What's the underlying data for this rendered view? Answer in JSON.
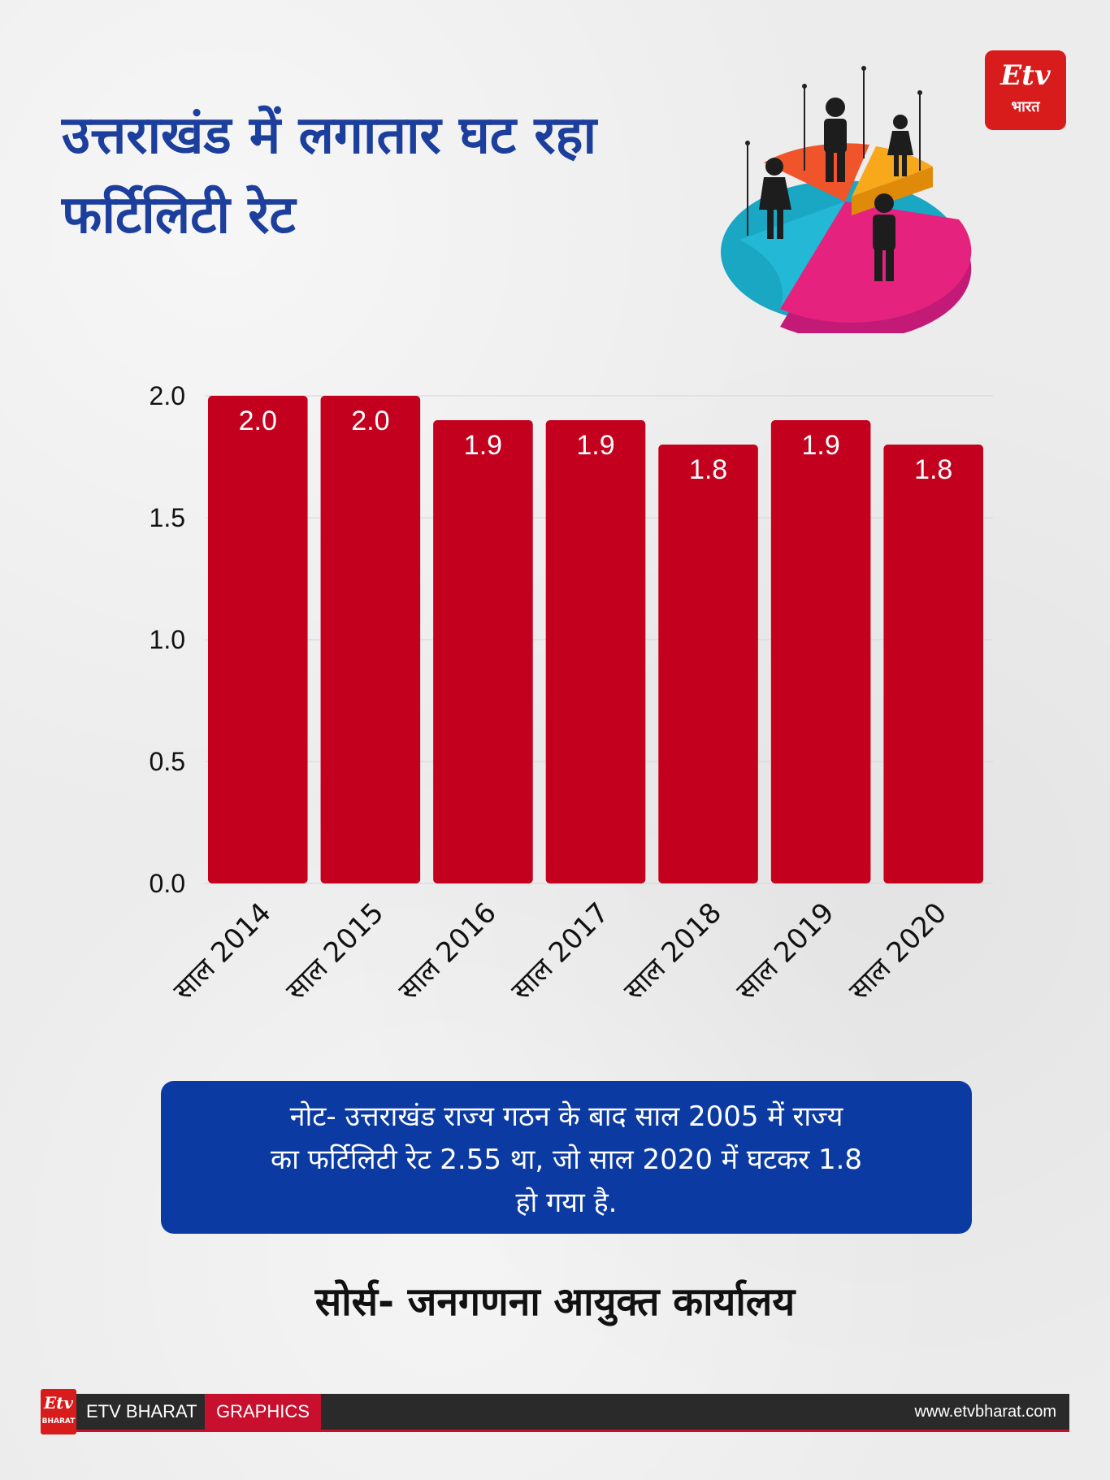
{
  "header": {
    "title_lines": [
      "उत्तराखंड में लगातार घट रहा",
      "फर्टिलिटी रेट"
    ],
    "logo_mark": "Etv",
    "logo_sub": "भारत"
  },
  "chart_data": {
    "type": "bar",
    "title": "",
    "xlabel": "",
    "ylabel": "",
    "categories": [
      "साल 2014",
      "साल 2015",
      "साल 2016",
      "साल 2017",
      "साल 2018",
      "साल 2019",
      "साल 2020"
    ],
    "values": [
      2.0,
      2.0,
      1.9,
      1.9,
      1.8,
      1.9,
      1.8
    ],
    "data_labels": [
      "2.0",
      "2.0",
      "1.9",
      "1.9",
      "1.8",
      "1.9",
      "1.8"
    ],
    "ylim": [
      0,
      2.0
    ],
    "yticks": [
      "0.0",
      "0.5",
      "1.0",
      "1.5",
      "2.0"
    ],
    "ytick_values": [
      0,
      0.5,
      1.0,
      1.5,
      2.0
    ],
    "grid": true,
    "bar_color": "#c4001f"
  },
  "note": {
    "lines": [
      "नोट- उत्तराखंड राज्य गठन के बाद साल 2005 में राज्य",
      "का फर्टिलिटी रेट 2.55 था, जो साल 2020 में घटकर 1.8",
      "हो गया है."
    ]
  },
  "source": "सोर्स- जनगणना आयुक्त कार्यालय",
  "footer": {
    "logo_mark": "Etv",
    "logo_sub": "BHARAT",
    "brand": "ETV BHARAT",
    "graphics": "GRAPHICS",
    "url": "www.etvbharat.com"
  },
  "colors": {
    "title": "#1c3e9c",
    "bar": "#c4001f",
    "note_box": "#0c3aa3",
    "logo": "#d81b1b",
    "footer": "#2a2a2a"
  },
  "icons": [
    "population-pie-illustration",
    "etv-bharat-logo"
  ]
}
